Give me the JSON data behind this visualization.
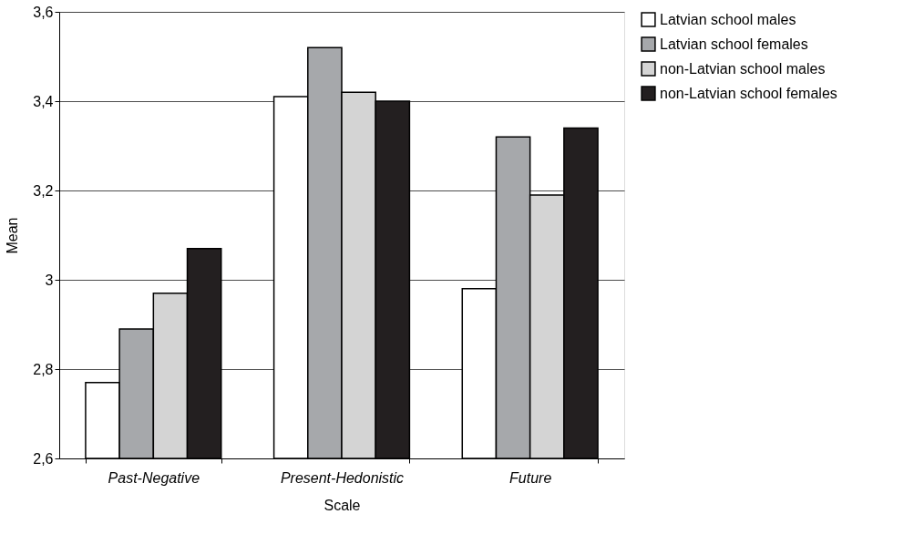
{
  "chart_data": {
    "type": "bar",
    "xlabel": "Scale",
    "ylabel": "Mean",
    "categories": [
      "Past-Negative",
      "Present-Hedonistic",
      "Future"
    ],
    "series": [
      {
        "name": "Latvian school males",
        "color": "#ffffff",
        "values": [
          2.77,
          3.41,
          2.98
        ]
      },
      {
        "name": "Latvian school females",
        "color": "#a6a8ab",
        "values": [
          2.89,
          3.52,
          3.32
        ]
      },
      {
        "name": "non-Latvian school males",
        "color": "#d4d4d4",
        "values": [
          2.97,
          3.42,
          3.19
        ]
      },
      {
        "name": "non-Latvian school females",
        "color": "#231f20",
        "values": [
          3.07,
          3.4,
          3.34
        ]
      }
    ],
    "ylim": [
      2.6,
      3.6
    ],
    "yticks": [
      {
        "value": 2.6,
        "label": "2,6"
      },
      {
        "value": 2.8,
        "label": "2,8"
      },
      3,
      {
        "value": 3.2,
        "label": "3,2"
      },
      {
        "value": 3.4,
        "label": "3,4"
      },
      {
        "value": 3.6,
        "label": "3,6"
      }
    ],
    "grid": "y",
    "legend": "right"
  }
}
